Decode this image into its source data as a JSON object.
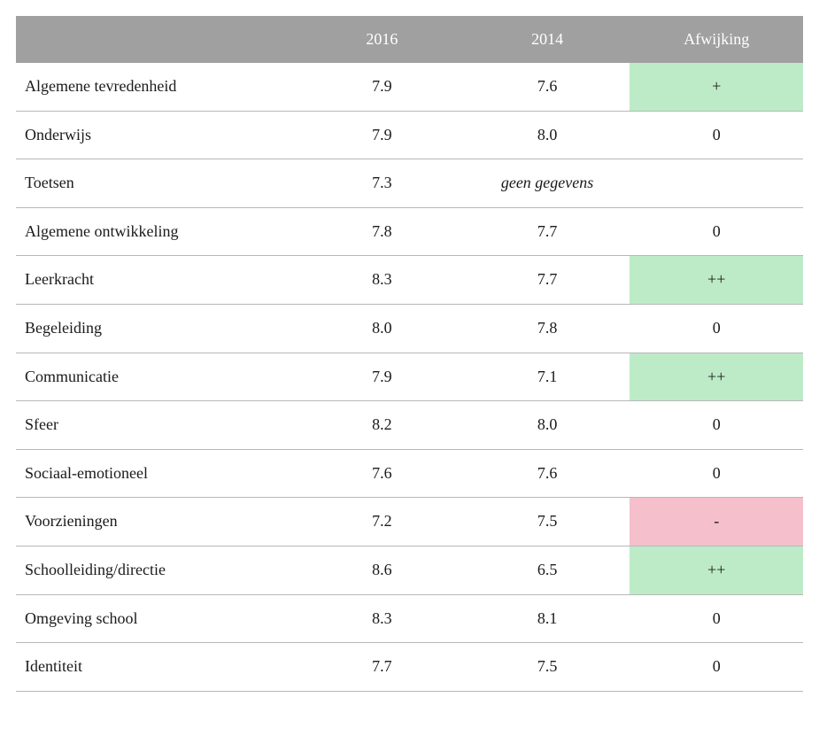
{
  "table": {
    "columns": {
      "label": "",
      "year1": "2016",
      "year2": "2014",
      "deviation": "Afwijking"
    },
    "column_widths_pct": [
      36,
      21,
      21,
      22
    ],
    "header_bg": "#a0a0a0",
    "header_fg": "#ffffff",
    "row_border_color": "#b8b8b8",
    "highlight_colors": {
      "green": "#bdebc7",
      "red": "#f5bfcb"
    },
    "font_family": "Georgia serif",
    "font_size_pt": 18,
    "rows": [
      {
        "label": "Algemene tevredenheid",
        "y1": "7.9",
        "y2": "7.6",
        "y2_italic": false,
        "dev": "+",
        "dev_highlight": "green"
      },
      {
        "label": "Onderwijs",
        "y1": "7.9",
        "y2": "8.0",
        "y2_italic": false,
        "dev": "0",
        "dev_highlight": null
      },
      {
        "label": "Toetsen",
        "y1": "7.3",
        "y2": "geen gegevens",
        "y2_italic": true,
        "dev": "",
        "dev_highlight": null
      },
      {
        "label": "Algemene ontwikkeling",
        "y1": "7.8",
        "y2": "7.7",
        "y2_italic": false,
        "dev": "0",
        "dev_highlight": null
      },
      {
        "label": "Leerkracht",
        "y1": "8.3",
        "y2": "7.7",
        "y2_italic": false,
        "dev": "++",
        "dev_highlight": "green"
      },
      {
        "label": "Begeleiding",
        "y1": "8.0",
        "y2": "7.8",
        "y2_italic": false,
        "dev": "0",
        "dev_highlight": null
      },
      {
        "label": "Communicatie",
        "y1": "7.9",
        "y2": "7.1",
        "y2_italic": false,
        "dev": "++",
        "dev_highlight": "green"
      },
      {
        "label": "Sfeer",
        "y1": "8.2",
        "y2": "8.0",
        "y2_italic": false,
        "dev": "0",
        "dev_highlight": null
      },
      {
        "label": "Sociaal-emotioneel",
        "y1": "7.6",
        "y2": "7.6",
        "y2_italic": false,
        "dev": "0",
        "dev_highlight": null
      },
      {
        "label": "Voorzieningen",
        "y1": "7.2",
        "y2": "7.5",
        "y2_italic": false,
        "dev": "-",
        "dev_highlight": "red"
      },
      {
        "label": "Schoolleiding/directie",
        "y1": "8.6",
        "y2": "6.5",
        "y2_italic": false,
        "dev": "++",
        "dev_highlight": "green"
      },
      {
        "label": "Omgeving school",
        "y1": "8.3",
        "y2": "8.1",
        "y2_italic": false,
        "dev": "0",
        "dev_highlight": null
      },
      {
        "label": "Identiteit",
        "y1": "7.7",
        "y2": "7.5",
        "y2_italic": false,
        "dev": "0",
        "dev_highlight": null
      }
    ]
  }
}
